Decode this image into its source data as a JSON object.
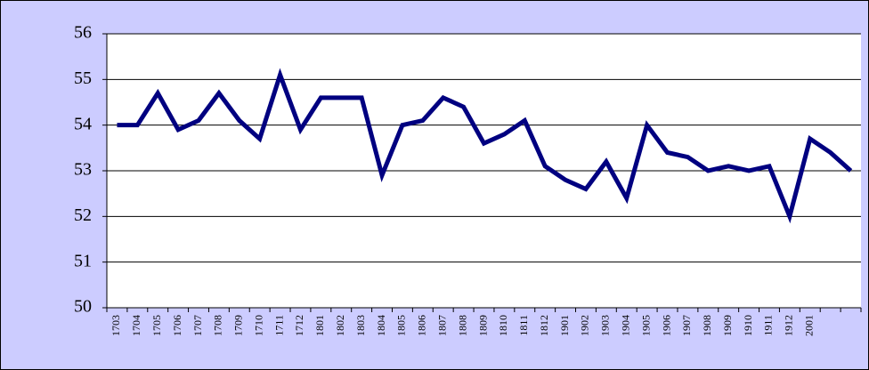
{
  "chart_data": {
    "type": "line",
    "categories": [
      "1703",
      "1704",
      "1705",
      "1706",
      "1707",
      "1708",
      "1709",
      "1710",
      "1711",
      "1712",
      "1801",
      "1802",
      "1803",
      "1804",
      "1805",
      "1806",
      "1807",
      "1808",
      "1809",
      "1810",
      "1811",
      "1812",
      "1901",
      "1902",
      "1903",
      "1904",
      "1905",
      "1906",
      "1907",
      "1908",
      "1909",
      "1910",
      "1911",
      "1912",
      "2001",
      null,
      null
    ],
    "series": [
      {
        "color": "#000080",
        "values": [
          54.0,
          54.0,
          54.7,
          53.9,
          54.1,
          54.7,
          54.1,
          53.7,
          55.1,
          53.9,
          54.6,
          54.6,
          54.6,
          52.9,
          54.0,
          54.1,
          54.6,
          54.4,
          53.6,
          53.8,
          54.1,
          53.1,
          52.8,
          52.6,
          53.2,
          52.4,
          54.0,
          53.4,
          53.3,
          53.0,
          53.1,
          53.0,
          53.1,
          52.0,
          53.7,
          53.4,
          53.0
        ]
      }
    ],
    "ylim": [
      50,
      56
    ],
    "yticks": [
      50,
      51,
      52,
      53,
      54,
      55,
      56
    ],
    "grid": true
  }
}
